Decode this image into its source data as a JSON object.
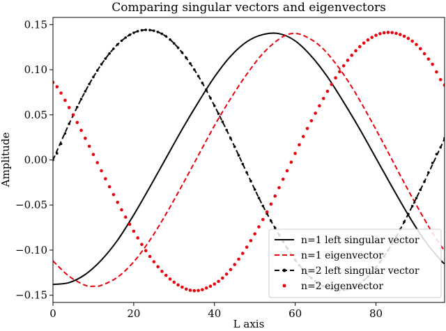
{
  "chart_data": {
    "type": "line",
    "title": "Comparing singular vectors and eigenvectors",
    "xlabel": "L axis",
    "ylabel": "Amplitude",
    "xlim": [
      0,
      97
    ],
    "ylim": [
      -0.158,
      0.158
    ],
    "x_ticks": [
      0,
      20,
      40,
      60,
      80
    ],
    "y_ticks": [
      -0.15,
      -0.1,
      -0.05,
      0.0,
      0.05,
      0.1,
      0.15
    ],
    "x_tick_labels": [
      "0",
      "20",
      "40",
      "60",
      "80"
    ],
    "y_tick_labels": [
      "−0.15",
      "−0.10",
      "−0.05",
      "0.00",
      "0.05",
      "0.10",
      "0.15"
    ],
    "grid": false,
    "legend_position": "lower-right",
    "series": [
      {
        "name": "n=1 left singular vector",
        "color": "#000000",
        "style": "solid",
        "x": [
          0,
          4,
          8,
          12,
          16,
          20,
          24,
          28,
          32,
          36,
          40,
          44,
          48,
          52,
          56,
          60,
          64,
          68,
          72,
          76,
          80,
          84,
          88,
          92,
          96,
          97
        ],
        "y": [
          -0.138,
          -0.136,
          -0.127,
          -0.111,
          -0.089,
          -0.061,
          -0.03,
          0.002,
          0.034,
          0.064,
          0.092,
          0.115,
          0.131,
          0.139,
          0.14,
          0.132,
          0.115,
          0.092,
          0.064,
          0.034,
          0.002,
          -0.03,
          -0.061,
          -0.089,
          -0.111,
          -0.115
        ]
      },
      {
        "name": "n=1 eigenvector",
        "color": "#e8000b",
        "style": "dashed",
        "x": [
          0,
          4,
          8,
          10,
          12,
          16,
          20,
          24,
          28,
          32,
          36,
          40,
          44,
          48,
          52,
          56,
          59,
          62,
          66,
          70,
          74,
          78,
          82,
          86,
          90,
          94,
          97
        ],
        "y": [
          -0.112,
          -0.129,
          -0.139,
          -0.14,
          -0.139,
          -0.13,
          -0.113,
          -0.089,
          -0.06,
          -0.028,
          0.005,
          0.038,
          0.068,
          0.095,
          0.118,
          0.134,
          0.14,
          0.138,
          0.127,
          0.107,
          0.081,
          0.05,
          0.017,
          -0.017,
          -0.05,
          -0.081,
          -0.101
        ]
      },
      {
        "name": "n=2 left singular vector",
        "color": "#000000",
        "style": "dash-dot-marker",
        "x": [
          0,
          4,
          8,
          12,
          16,
          20,
          24,
          28,
          32,
          36,
          40,
          44,
          48,
          52,
          56,
          60,
          64,
          68,
          72,
          76,
          80,
          84,
          88,
          92,
          96,
          97
        ],
        "y": [
          0.0,
          0.04,
          0.076,
          0.106,
          0.128,
          0.141,
          0.144,
          0.137,
          0.119,
          0.093,
          0.06,
          0.024,
          -0.014,
          -0.051,
          -0.083,
          -0.111,
          -0.131,
          -0.142,
          -0.144,
          -0.137,
          -0.119,
          -0.093,
          -0.06,
          -0.024,
          0.014,
          0.024
        ]
      },
      {
        "name": "n=2 eigenvector",
        "color": "#e8000b",
        "style": "dotted-marker",
        "x": [
          0,
          4,
          8,
          12,
          16,
          20,
          24,
          28,
          32,
          35,
          38,
          42,
          46,
          50,
          54,
          58,
          62,
          66,
          70,
          74,
          78,
          82,
          86,
          90,
          94,
          97
        ],
        "y": [
          0.086,
          0.058,
          0.024,
          -0.012,
          -0.047,
          -0.079,
          -0.107,
          -0.128,
          -0.141,
          -0.145,
          -0.142,
          -0.131,
          -0.11,
          -0.082,
          -0.049,
          -0.012,
          0.026,
          0.06,
          0.091,
          0.116,
          0.133,
          0.141,
          0.139,
          0.128,
          0.106,
          0.083
        ]
      }
    ]
  }
}
